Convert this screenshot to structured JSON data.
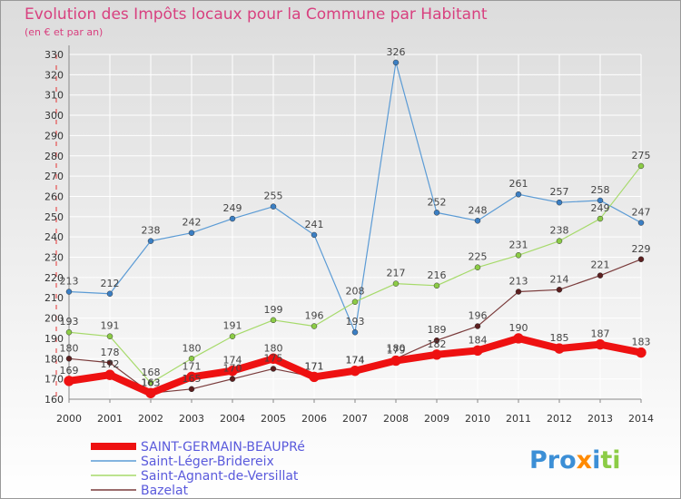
{
  "colors": {
    "title": "#d8407f",
    "background_top": "#dcdcdc",
    "background_bottom": "#ffffff",
    "legend_text": "#5a5adc",
    "grid": "#ffffff",
    "axis": "#888888"
  },
  "logo": {
    "text": "Proxiti",
    "brand": "proxiti-logo"
  },
  "chart_data": {
    "type": "line",
    "title": "Evolution des Impôts locaux pour la Commune par Habitant",
    "subtitle": "(en € et par an)",
    "xlabel": "",
    "ylabel": "",
    "x": [
      2000,
      2001,
      2002,
      2003,
      2004,
      2005,
      2006,
      2007,
      2008,
      2009,
      2010,
      2011,
      2012,
      2013,
      2014
    ],
    "ylim": [
      160,
      330
    ],
    "yticks": [
      160,
      170,
      180,
      190,
      200,
      210,
      220,
      230,
      240,
      250,
      260,
      270,
      280,
      290,
      300,
      310,
      320,
      330
    ],
    "grid": true,
    "legend_position": "bottom-left",
    "series": [
      {
        "name": "Saint-Léger-Bridereix",
        "color": "#5b9bd5",
        "marker": "#3b7fc4",
        "width": 1.2,
        "values": [
          213,
          212,
          238,
          242,
          249,
          255,
          241,
          193,
          326,
          252,
          248,
          261,
          257,
          258,
          247
        ]
      },
      {
        "name": "Saint-Agnant-de-Versillat",
        "color": "#a6da6a",
        "marker": "#8ccc46",
        "width": 1.2,
        "values": [
          193,
          191,
          168,
          180,
          191,
          199,
          196,
          208,
          217,
          216,
          225,
          231,
          238,
          249,
          275
        ]
      },
      {
        "name": "Bazelat",
        "color": "#7a3b3b",
        "marker": "#5c1f1f",
        "width": 1.2,
        "values": [
          180,
          178,
          163,
          165,
          170,
          175,
          171,
          174,
          180,
          189,
          196,
          213,
          214,
          221,
          229
        ]
      },
      {
        "name": "SAINT-GERMAIN-BEAUPRé",
        "color": "#ee1111",
        "marker": "#ee1111",
        "width": 8,
        "values": [
          169,
          172,
          163,
          171,
          174,
          180,
          171,
          174,
          179,
          182,
          184,
          190,
          185,
          187,
          183
        ]
      }
    ],
    "legend_order": [
      "SAINT-GERMAIN-BEAUPRé",
      "Saint-Léger-Bridereix",
      "Saint-Agnant-de-Versillat",
      "Bazelat"
    ]
  }
}
